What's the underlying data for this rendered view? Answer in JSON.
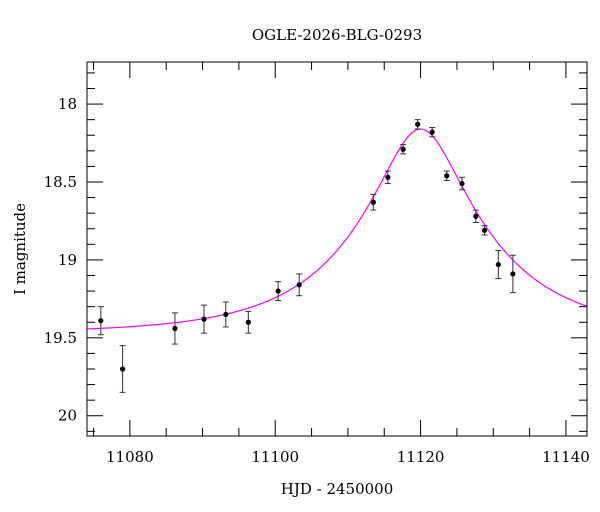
{
  "chart_data": {
    "type": "scatter",
    "title": "OGLE-2026-BLG-0293",
    "xlabel": "HJD - 2450000",
    "ylabel": "I magnitude",
    "xlim": [
      11074.1,
      11142.9
    ],
    "ylim": [
      20.13,
      17.73
    ],
    "y_inverted": true,
    "grid": false,
    "xticks": [
      11080,
      11100,
      11120,
      11140
    ],
    "yticks": [
      18,
      18.5,
      19,
      19.5,
      20
    ],
    "ytick_labels": [
      "18",
      "18.5",
      "19",
      "19.5",
      "20"
    ],
    "x_minor_step": 5,
    "y_minor_step": 0.1,
    "points_color": "#000000",
    "model_color": "#ff00ff",
    "points": [
      {
        "x": 11076.0,
        "y": 19.39,
        "err": 0.09
      },
      {
        "x": 11079.0,
        "y": 19.7,
        "err": 0.15
      },
      {
        "x": 11086.2,
        "y": 19.44,
        "err": 0.1
      },
      {
        "x": 11090.2,
        "y": 19.38,
        "err": 0.09
      },
      {
        "x": 11093.2,
        "y": 19.35,
        "err": 0.08
      },
      {
        "x": 11096.3,
        "y": 19.4,
        "err": 0.07
      },
      {
        "x": 11100.4,
        "y": 19.2,
        "err": 0.06
      },
      {
        "x": 11103.3,
        "y": 19.16,
        "err": 0.07
      },
      {
        "x": 11113.5,
        "y": 18.63,
        "err": 0.05
      },
      {
        "x": 11115.5,
        "y": 18.47,
        "err": 0.04
      },
      {
        "x": 11117.6,
        "y": 18.29,
        "err": 0.03
      },
      {
        "x": 11119.6,
        "y": 18.13,
        "err": 0.03
      },
      {
        "x": 11121.6,
        "y": 18.18,
        "err": 0.03
      },
      {
        "x": 11123.6,
        "y": 18.46,
        "err": 0.03
      },
      {
        "x": 11125.7,
        "y": 18.51,
        "err": 0.04
      },
      {
        "x": 11127.6,
        "y": 18.72,
        "err": 0.04
      },
      {
        "x": 11128.8,
        "y": 18.81,
        "err": 0.03
      },
      {
        "x": 11130.7,
        "y": 19.03,
        "err": 0.09
      },
      {
        "x": 11132.7,
        "y": 19.09,
        "err": 0.12
      }
    ],
    "model": {
      "type": "point-lens",
      "t0": 11120.0,
      "u0": 0.31,
      "tE": 17.4,
      "baseline_mag": 19.47
    }
  }
}
